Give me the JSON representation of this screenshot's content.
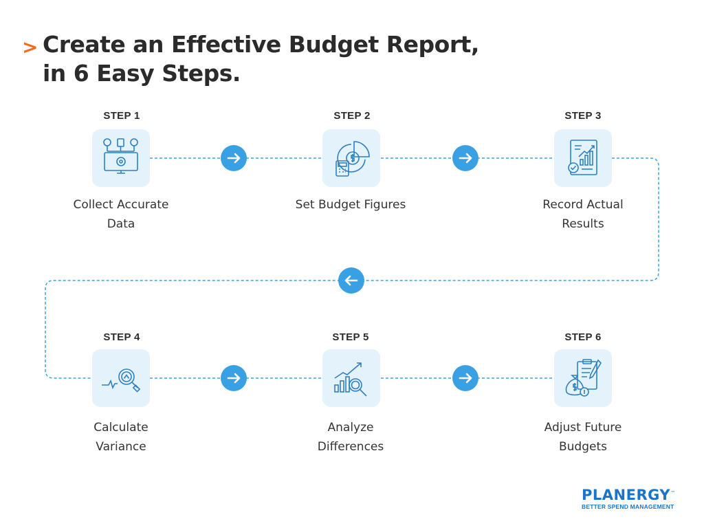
{
  "title": {
    "line1": "Create an Effective Budget Report,",
    "line2": "in 6 Easy Steps."
  },
  "steps": [
    {
      "label": "STEP 1",
      "name_lines": [
        "Collect Accurate",
        "Data"
      ],
      "icon": "data-collection-monitor-icon"
    },
    {
      "label": "STEP 2",
      "name_lines": [
        "Set Budget Figures"
      ],
      "icon": "calculator-pie-chart-icon"
    },
    {
      "label": "STEP 3",
      "name_lines": [
        "Record Actual",
        "Results"
      ],
      "icon": "report-document-icon"
    },
    {
      "label": "STEP 4",
      "name_lines": [
        "Calculate",
        "Variance"
      ],
      "icon": "variance-magnifier-icon"
    },
    {
      "label": "STEP 5",
      "name_lines": [
        "Analyze",
        "Differences"
      ],
      "icon": "analysis-bar-chart-icon"
    },
    {
      "label": "STEP 6",
      "name_lines": [
        "Adjust Future",
        "Budgets"
      ],
      "icon": "money-bag-clipboard-icon"
    }
  ],
  "connectors": [
    {
      "direction": "right",
      "icon": "arrow-right-icon"
    },
    {
      "direction": "right",
      "icon": "arrow-right-icon"
    },
    {
      "direction": "left",
      "icon": "arrow-left-icon"
    },
    {
      "direction": "right",
      "icon": "arrow-right-icon"
    },
    {
      "direction": "right",
      "icon": "arrow-right-icon"
    }
  ],
  "brand": {
    "name": "PLANERGY",
    "trademark": "™",
    "tagline": "BETTER SPEND MANAGEMENT"
  },
  "colors": {
    "title_chevron": "#f26b1d",
    "title_text": "#2b2b2b",
    "accent_blue": "#3aa0e4",
    "icon_bg": "#e4f2fc",
    "brand_blue": "#1a75c9"
  }
}
